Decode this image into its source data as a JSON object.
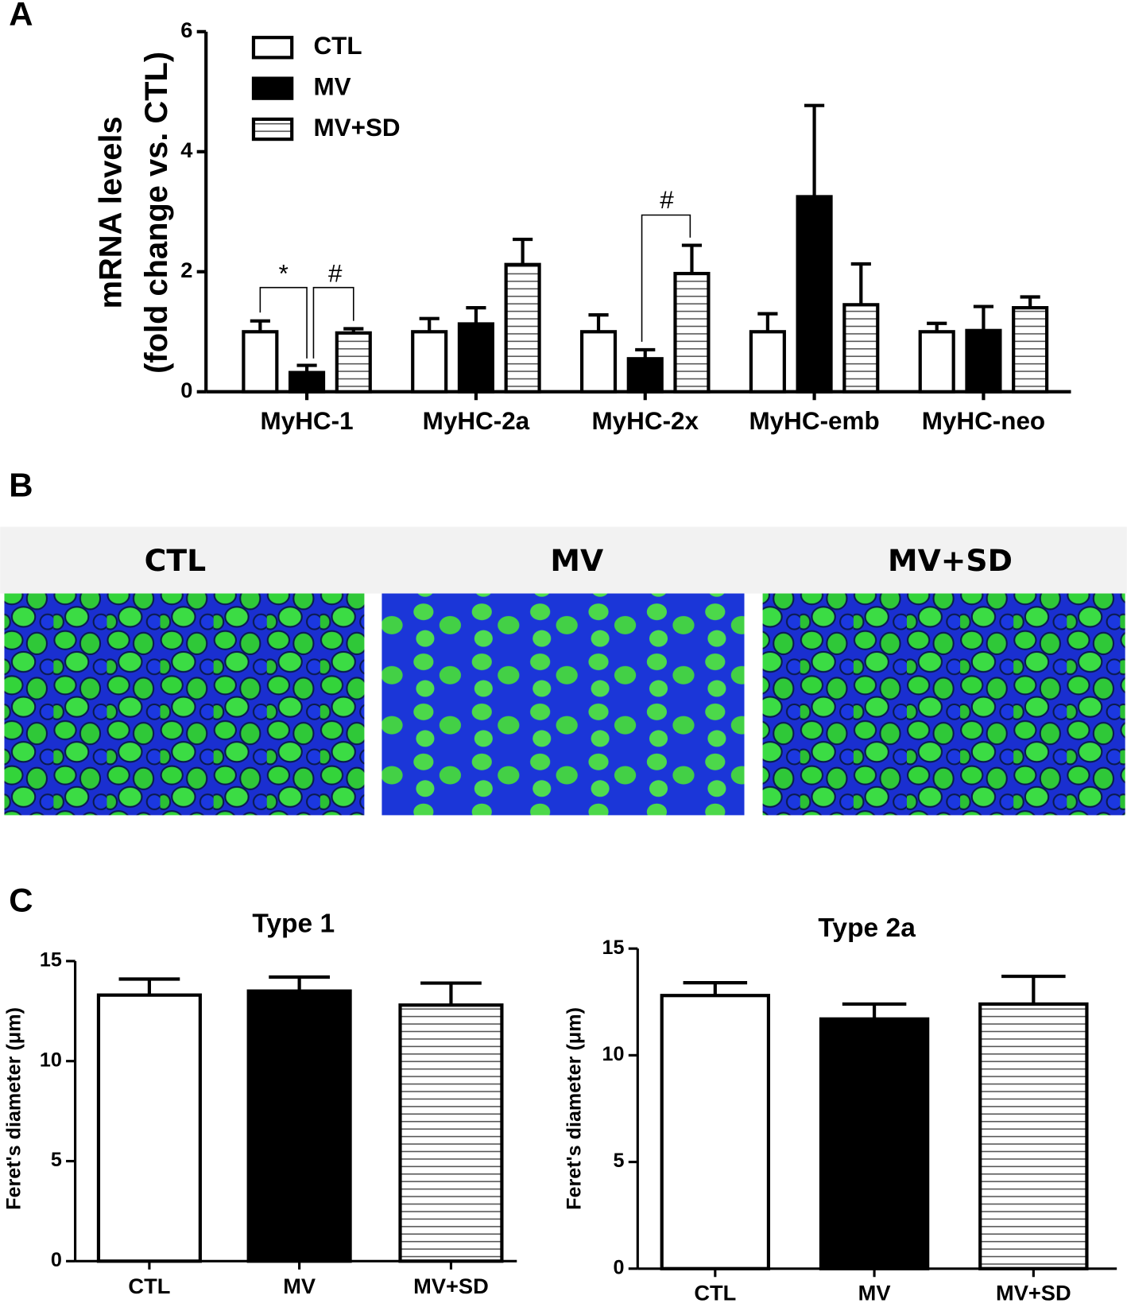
{
  "panels": {
    "labels": [
      "A",
      "B",
      "C"
    ]
  },
  "micrographs": {
    "titles": [
      "CTL",
      "MV",
      "MV+SD"
    ]
  },
  "chart_data": [
    {
      "type": "bar",
      "y_label": [
        "mRNA levels",
        "(fold change vs. CTL)"
      ],
      "categories": [
        "MyHC-1",
        "MyHC-2a",
        "MyHC-2x",
        "MyHC-emb",
        "MyHC-neo"
      ],
      "series": [
        {
          "name": "CTL",
          "style": "open",
          "values": [
            1.0,
            1.0,
            1.0,
            1.0,
            1.0
          ],
          "errors": [
            0.18,
            0.22,
            0.28,
            0.3,
            0.14
          ]
        },
        {
          "name": "MV",
          "style": "solid",
          "values": [
            0.32,
            1.13,
            0.55,
            3.25,
            1.02
          ],
          "errors": [
            0.12,
            0.27,
            0.15,
            1.52,
            0.4
          ]
        },
        {
          "name": "MV+SD",
          "style": "striped",
          "values": [
            0.98,
            2.12,
            1.97,
            1.45,
            1.4
          ],
          "errors": [
            0.07,
            0.42,
            0.47,
            0.68,
            0.18
          ]
        }
      ],
      "ylim": [
        0,
        6
      ],
      "yticks": [
        0,
        2,
        4,
        6
      ],
      "annotations": [
        "*",
        "#",
        "#"
      ],
      "legend": "upper left"
    },
    {
      "type": "bar",
      "title": "Type 1",
      "y_label": "Feret's diameter (μm)",
      "categories": [
        "CTL",
        "MV",
        "MV+SD"
      ],
      "values": [
        13.3,
        13.5,
        12.8
      ],
      "errors": [
        0.8,
        0.7,
        1.1
      ],
      "bar_styles": [
        "open",
        "solid",
        "striped"
      ],
      "ylim": [
        0,
        15
      ],
      "yticks": [
        0,
        5,
        10,
        15
      ]
    },
    {
      "type": "bar",
      "title": "Type 2a",
      "y_label": "Feret's diameter (μm)",
      "categories": [
        "CTL",
        "MV",
        "MV+SD"
      ],
      "values": [
        12.8,
        11.7,
        12.4
      ],
      "errors": [
        0.6,
        0.7,
        1.3
      ],
      "bar_styles": [
        "open",
        "solid",
        "striped"
      ],
      "ylim": [
        0,
        15
      ],
      "yticks": [
        0,
        5,
        10,
        15
      ]
    }
  ]
}
